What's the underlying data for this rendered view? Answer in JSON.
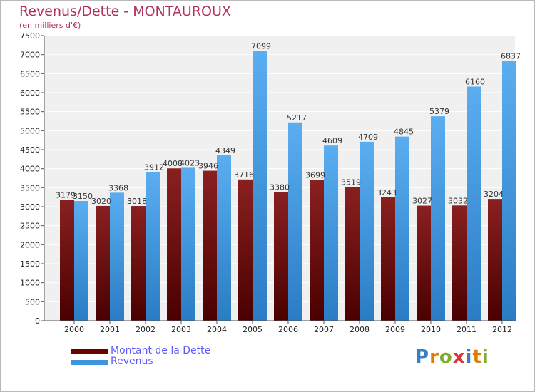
{
  "header": {
    "title": "Revenus/Dette - MONTAUROUX",
    "subtitle": "(en milliers d'€)"
  },
  "legend": {
    "items": [
      {
        "label": "Montant de la Dette",
        "color": "#6b0000"
      },
      {
        "label": "Revenus",
        "color": "#3d95dd"
      }
    ]
  },
  "logo": {
    "text": "Proxiti",
    "colors": [
      "#3a7fc1",
      "#e07b00",
      "#7cae2a",
      "#d33",
      "#3a7fc1",
      "#e07b00",
      "#7cae2a"
    ]
  },
  "chart_data": {
    "type": "bar",
    "title": "Revenus/Dette - MONTAUROUX",
    "subtitle": "(en milliers d'€)",
    "xlabel": "",
    "ylabel": "",
    "ylim": [
      0,
      7500
    ],
    "ytick_step": 500,
    "yticks": [
      "0",
      "500",
      "1000",
      "1500",
      "2000",
      "2500",
      "3000",
      "3500",
      "4000",
      "4500",
      "5000",
      "5500",
      "6000",
      "6500",
      "7000",
      "7500"
    ],
    "grid": true,
    "legend_position": "bottom-left",
    "categories": [
      "2000",
      "2001",
      "2002",
      "2003",
      "2004",
      "2005",
      "2006",
      "2007",
      "2008",
      "2009",
      "2010",
      "2011",
      "2012"
    ],
    "series": [
      {
        "name": "Montant de la Dette",
        "color": "#6b0000",
        "values": [
          3179,
          3020,
          3018,
          4008,
          3946,
          3716,
          3380,
          3699,
          3519,
          3243,
          3027,
          3032,
          3204
        ]
      },
      {
        "name": "Revenus",
        "color": "#3d95dd",
        "values": [
          3150,
          3368,
          3912,
          4023,
          4349,
          7099,
          5217,
          4609,
          4709,
          4845,
          5379,
          6160,
          6837
        ]
      }
    ]
  }
}
